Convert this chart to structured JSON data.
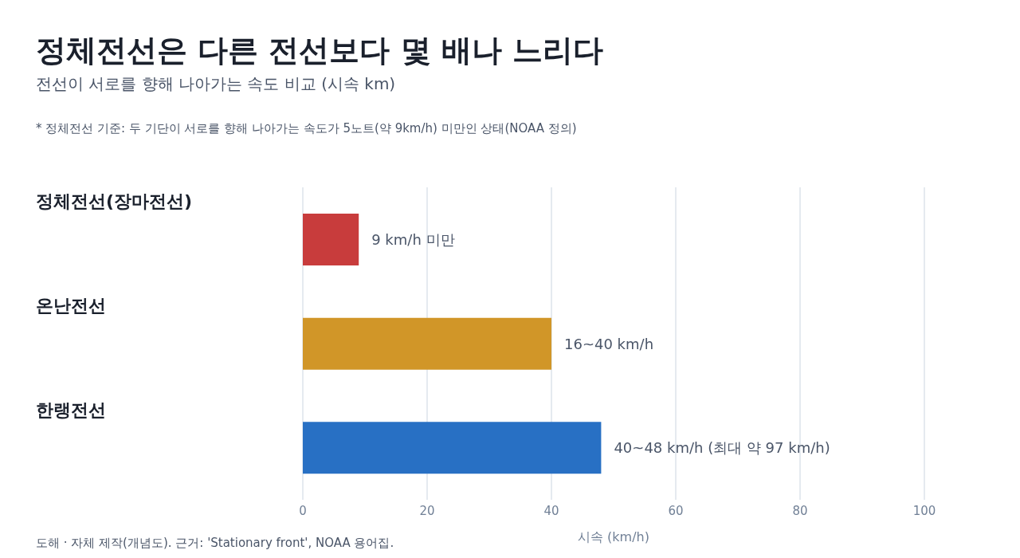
{
  "chart_data": {
    "type": "bar",
    "orientation": "horizontal",
    "title": "정체전선은 다른 전선보다 몇 배나 느리다",
    "subtitle": "전선이 서로를 향해 나아가는 속도 비교 (시속 km)",
    "categories": [
      "정체전선(장마전선)",
      "온난전선",
      "한랭전선"
    ],
    "values": [
      9,
      40,
      48
    ],
    "colors": [
      "#c83c3c",
      "#d19628",
      "#2870c4"
    ],
    "value_labels": [
      "9 km/h 미만",
      "16~40 km/h",
      "40~48 km/h (최대 약 97 km/h)"
    ],
    "xlabel": "시속 (km/h)",
    "xlim": [
      0,
      100
    ],
    "xticks": [
      0,
      20,
      40,
      60,
      80,
      100
    ],
    "grid": "x",
    "annotations": [
      "* 정체전선 기준: 두 기단이 서로를 향해 나아가는 속도가 5노트(약 9km/h) 미만인 상태(NOAA 정의)",
      "도해 · 자체 제작(개념도). 근거: 'Stationary front', NOAA 용어집."
    ]
  }
}
